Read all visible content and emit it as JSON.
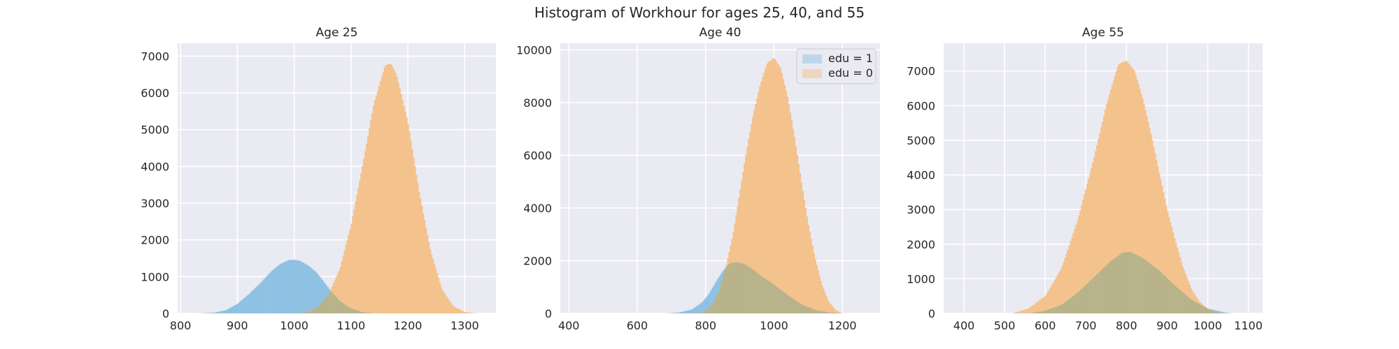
{
  "chart_data": {
    "type": "histogram",
    "title": "Histogram of Workhour for ages 25, 40, and 55",
    "colors": {
      "edu_1": "#8fc1e3",
      "edu_0": "#f4c28c",
      "overlap": "#b8b38a",
      "background": "#eaeaf2",
      "grid": "#ffffff"
    },
    "legend": {
      "placement": "top-right",
      "panel": 2,
      "entries": [
        "edu = 1",
        "edu = 0"
      ]
    },
    "grid": true,
    "panels": [
      {
        "title": "Age 25",
        "xlim": [
          795,
          1355
        ],
        "ylim": [
          0,
          7350
        ],
        "xticks": [
          800,
          900,
          1000,
          1100,
          1200,
          1300
        ],
        "yticks": [
          0,
          1000,
          2000,
          3000,
          4000,
          5000,
          6000,
          7000
        ],
        "series": [
          {
            "name": "edu = 1",
            "x": [
              830,
              860,
              880,
              900,
              920,
              940,
              960,
              975,
              990,
              1000,
              1010,
              1025,
              1040,
              1060,
              1080,
              1100,
              1120,
              1140
            ],
            "values": [
              0,
              20,
              90,
              260,
              520,
              820,
              1150,
              1340,
              1450,
              1460,
              1430,
              1300,
              1100,
              700,
              340,
              140,
              40,
              0
            ]
          },
          {
            "name": "edu = 0",
            "x": [
              1000,
              1020,
              1040,
              1060,
              1080,
              1100,
              1120,
              1140,
              1160,
              1170,
              1180,
              1200,
              1220,
              1240,
              1260,
              1280,
              1300,
              1320
            ],
            "values": [
              0,
              30,
              150,
              500,
              1200,
              2400,
              4000,
              5700,
              6750,
              6800,
              6500,
              5200,
              3300,
              1700,
              650,
              190,
              40,
              0
            ]
          }
        ]
      },
      {
        "title": "Age 40",
        "xlim": [
          375,
          1310
        ],
        "ylim": [
          0,
          10250
        ],
        "xticks": [
          400,
          600,
          800,
          1000,
          1200
        ],
        "yticks": [
          0,
          2000,
          4000,
          6000,
          8000,
          10000
        ],
        "series": [
          {
            "name": "edu = 1",
            "x": [
              680,
              720,
              760,
              790,
              810,
              830,
              850,
              870,
              890,
              910,
              930,
              960,
              1000,
              1040,
              1080,
              1120,
              1160,
              1200
            ],
            "values": [
              0,
              30,
              150,
              420,
              750,
              1200,
              1600,
              1900,
              1950,
              1900,
              1750,
              1450,
              1100,
              700,
              350,
              140,
              40,
              0
            ]
          },
          {
            "name": "edu = 0",
            "x": [
              780,
              800,
              820,
              840,
              860,
              880,
              900,
              920,
              940,
              960,
              980,
              1000,
              1020,
              1040,
              1060,
              1080,
              1100,
              1120,
              1140,
              1160,
              1180,
              1200
            ],
            "values": [
              0,
              100,
              350,
              900,
              1800,
              3000,
              4600,
              6200,
              7600,
              8700,
              9500,
              9700,
              9300,
              8200,
              6700,
              5000,
              3400,
              2100,
              1100,
              450,
              130,
              0
            ]
          }
        ]
      },
      {
        "title": "Age 55",
        "xlim": [
          350,
          1135
        ],
        "ylim": [
          0,
          7800
        ],
        "xticks": [
          400,
          500,
          600,
          700,
          800,
          900,
          1000,
          1100
        ],
        "yticks": [
          0,
          1000,
          2000,
          3000,
          4000,
          5000,
          6000,
          7000
        ],
        "series": [
          {
            "name": "edu = 1",
            "x": [
              560,
              600,
              640,
              680,
              720,
              760,
              790,
              810,
              840,
              880,
              920,
              960,
              1000,
              1040,
              1060
            ],
            "values": [
              0,
              80,
              250,
              600,
              1050,
              1500,
              1760,
              1780,
              1600,
              1250,
              800,
              400,
              140,
              30,
              0
            ]
          },
          {
            "name": "edu = 0",
            "x": [
              520,
              560,
              600,
              640,
              680,
              720,
              750,
              780,
              800,
              820,
              840,
              860,
              880,
              900,
              920,
              940,
              960,
              980,
              1000,
              1020,
              1050
            ],
            "values": [
              0,
              150,
              500,
              1300,
              2700,
              4500,
              6000,
              7200,
              7300,
              7000,
              6200,
              5200,
              4100,
              3000,
              2100,
              1300,
              700,
              330,
              130,
              40,
              0
            ]
          }
        ]
      }
    ]
  }
}
